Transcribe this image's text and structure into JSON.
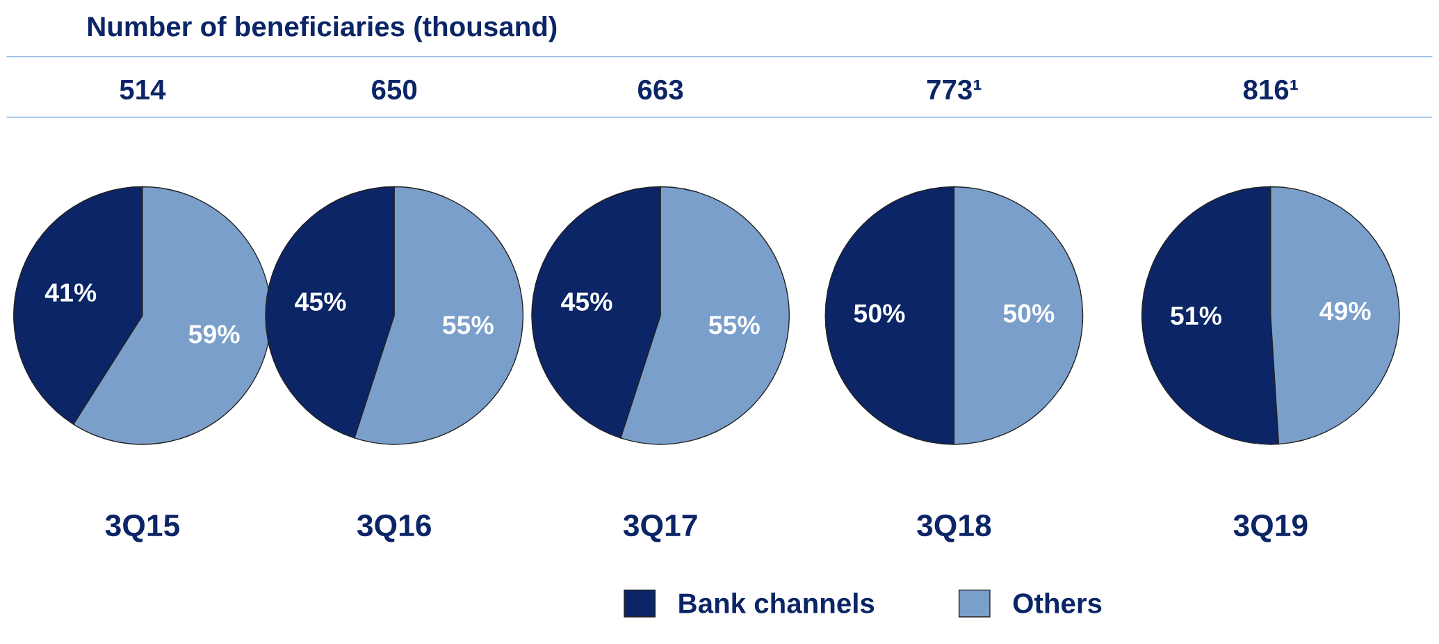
{
  "chart_data": [
    {
      "type": "pie",
      "title": "514",
      "xlabel": "3Q15",
      "annotations": [
        "Number of beneficiaries (thousand)"
      ],
      "categories": [
        "Bank channels",
        "Others"
      ],
      "values": [
        41,
        59
      ],
      "value_labels": [
        "41%",
        "59%"
      ],
      "colors": [
        "#0b2566",
        "#7a9fcb"
      ],
      "legend": "bottom"
    },
    {
      "type": "pie",
      "title": "650",
      "xlabel": "3Q16",
      "categories": [
        null,
        null
      ],
      "values": [
        45,
        55
      ],
      "value_labels": [
        "45%",
        "55%"
      ],
      "colors": [
        "#0b2566",
        "#7a9fcb"
      ]
    },
    {
      "type": "pie",
      "title": "663",
      "xlabel": "3Q17",
      "categories": [
        null,
        null
      ],
      "values": [
        45,
        55
      ],
      "value_labels": [
        "45%",
        "55%"
      ],
      "colors": [
        "#0b2566",
        "#7a9fcb"
      ]
    },
    {
      "type": "pie",
      "title": "773¹",
      "xlabel": "3Q18",
      "categories": [
        null,
        null
      ],
      "values": [
        50,
        50
      ],
      "value_labels": [
        "50%",
        "50%"
      ],
      "colors": [
        "#0b2566",
        "#7a9fcb"
      ]
    },
    {
      "type": "pie",
      "title": "816¹",
      "xlabel": "3Q19",
      "categories": [
        null,
        null
      ],
      "values": [
        51,
        49
      ],
      "value_labels": [
        "51%",
        "49%"
      ],
      "colors": [
        "#0b2566",
        "#7a9fcb"
      ]
    }
  ]
}
